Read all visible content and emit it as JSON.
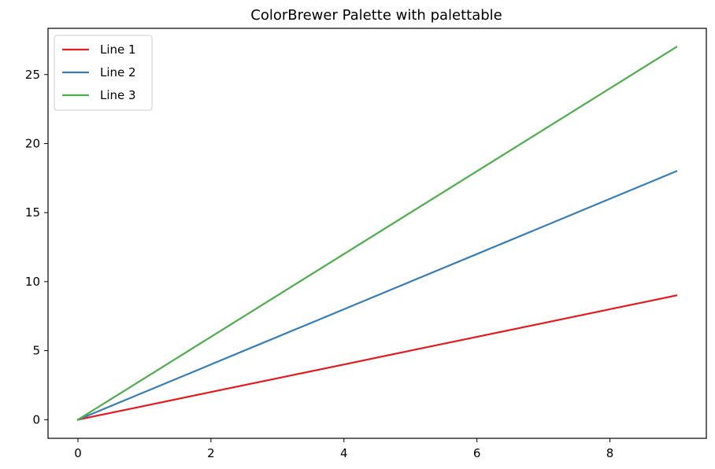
{
  "chart_data": {
    "type": "line",
    "title": "ColorBrewer Palette with palettable",
    "xlabel": "",
    "ylabel": "",
    "x": [
      0,
      1,
      2,
      3,
      4,
      5,
      6,
      7,
      8,
      9
    ],
    "xlim": [
      -0.45,
      9.45
    ],
    "ylim": [
      -1.35,
      28.35
    ],
    "x_ticks": [
      0,
      2,
      4,
      6,
      8
    ],
    "y_ticks": [
      0,
      5,
      10,
      15,
      20,
      25
    ],
    "grid": false,
    "legend_position": "upper-left",
    "series": [
      {
        "name": "Line 1",
        "color": "#e41a1c",
        "values": [
          0,
          1,
          2,
          3,
          4,
          5,
          6,
          7,
          8,
          9
        ]
      },
      {
        "name": "Line 2",
        "color": "#377eb8",
        "values": [
          0,
          2,
          4,
          6,
          8,
          10,
          12,
          14,
          16,
          18
        ]
      },
      {
        "name": "Line 3",
        "color": "#4daf4a",
        "values": [
          0,
          3,
          6,
          9,
          12,
          15,
          18,
          21,
          24,
          27
        ]
      }
    ]
  }
}
